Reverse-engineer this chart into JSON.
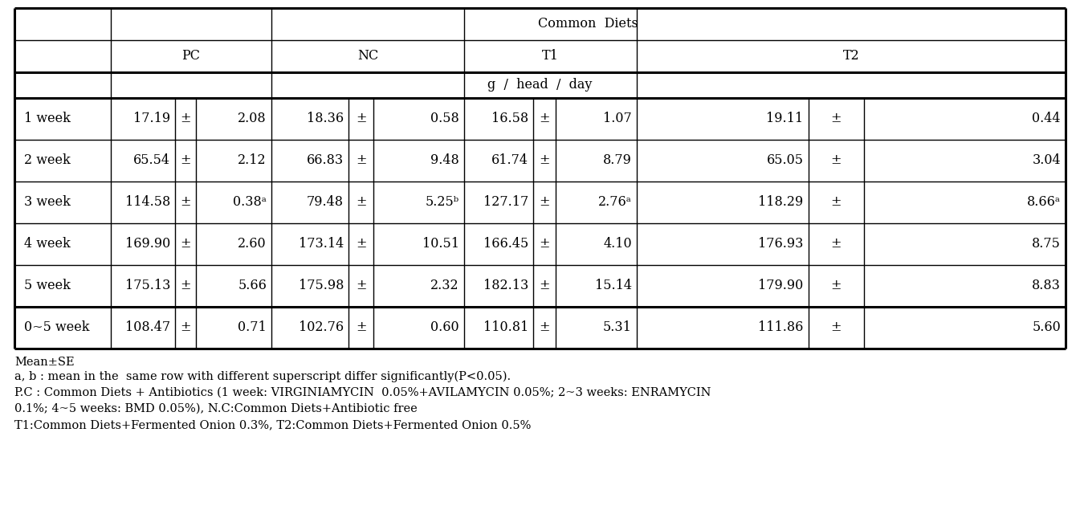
{
  "title_row": "Common  Diets",
  "subheaders": [
    "PC",
    "NC",
    "T1",
    "T2"
  ],
  "unit_row": "g  /  head  /  day",
  "row_labels": [
    "1 week",
    "2 week",
    "3 week",
    "4 week",
    "5 week",
    "0~5 week"
  ],
  "data": {
    "PC": [
      [
        "17.19",
        "±",
        "2.08"
      ],
      [
        "65.54",
        "±",
        "2.12"
      ],
      [
        "114.58",
        "±",
        "0.38ᵃ"
      ],
      [
        "169.90",
        "±",
        "2.60"
      ],
      [
        "175.13",
        "±",
        "5.66"
      ],
      [
        "108.47",
        "±",
        "0.71"
      ]
    ],
    "NC": [
      [
        "18.36",
        "±",
        "0.58"
      ],
      [
        "66.83",
        "±",
        "9.48"
      ],
      [
        "79.48",
        "±",
        "5.25ᵇ"
      ],
      [
        "173.14",
        "±",
        "10.51"
      ],
      [
        "175.98",
        "±",
        "2.32"
      ],
      [
        "102.76",
        "±",
        "0.60"
      ]
    ],
    "T1": [
      [
        "16.58",
        "±",
        "1.07"
      ],
      [
        "61.74",
        "±",
        "8.79"
      ],
      [
        "127.17",
        "±",
        "2.76ᵃ"
      ],
      [
        "166.45",
        "±",
        "4.10"
      ],
      [
        "182.13",
        "±",
        "15.14"
      ],
      [
        "110.81",
        "±",
        "5.31"
      ]
    ],
    "T2": [
      [
        "19.11",
        "±",
        "0.44"
      ],
      [
        "65.05",
        "±",
        "3.04"
      ],
      [
        "118.29",
        "±",
        "8.66ᵃ"
      ],
      [
        "176.93",
        "±",
        "8.75"
      ],
      [
        "179.90",
        "±",
        "8.83"
      ],
      [
        "111.86",
        "±",
        "5.60"
      ]
    ]
  },
  "footnotes": [
    "Mean±SE",
    "a, b : mean in the  same row with different superscript differ significantly(P<0.05).",
    "P.C : Common Diets + Antibiotics (1 week: VIRGINIAMYCIN  0.05%+AVILAMYCIN 0.05%; 2~3 weeks: ENRAMYCIN",
    "0.1%; 4~5 weeks: BMD 0.05%), N.C:Common Diets+Antibiotic free",
    "T1:Common Diets+Fermented Onion 0.3%, T2:Common Diets+Fermented Onion 0.5%"
  ],
  "bg_color": "#ffffff",
  "line_color": "#000000",
  "font_size": 11.5,
  "footnote_font_size": 10.5
}
